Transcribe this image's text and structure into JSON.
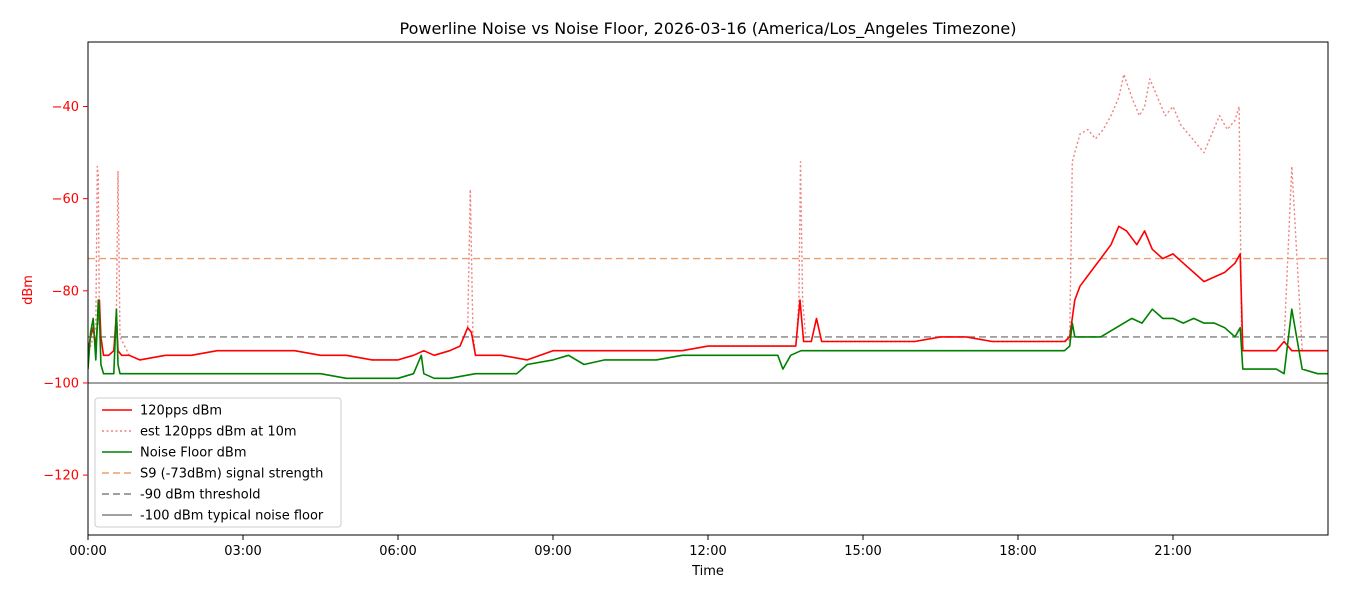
{
  "chart_data": {
    "type": "line",
    "title": "Powerline Noise vs Noise Floor, 2026-03-16 (America/Los_Angeles Timezone)",
    "xlabel": "Time",
    "ylabel": "dBm",
    "xlim": [
      0,
      24
    ],
    "ylim": [
      -133,
      -26
    ],
    "x_ticks": [
      0,
      3,
      6,
      9,
      12,
      15,
      18,
      21
    ],
    "x_tick_labels": [
      "00:00",
      "03:00",
      "06:00",
      "09:00",
      "12:00",
      "15:00",
      "18:00",
      "21:00"
    ],
    "y_ticks": [
      -120,
      -100,
      -80,
      -60,
      -40
    ],
    "y_tick_labels": [
      "−120",
      "−100",
      "−80",
      "−60",
      "−40"
    ],
    "grid": false,
    "legend_position": "lower-left",
    "series": [
      {
        "name": "120pps dBm",
        "color": "#ff0000",
        "style": "solid",
        "x": [
          0.0,
          0.05,
          0.1,
          0.15,
          0.2,
          0.22,
          0.25,
          0.3,
          0.4,
          0.5,
          0.55,
          0.58,
          0.65,
          0.8,
          1.0,
          1.5,
          2.0,
          2.5,
          3.0,
          3.5,
          4.0,
          4.5,
          5.0,
          5.5,
          6.0,
          6.3,
          6.5,
          6.7,
          7.0,
          7.2,
          7.35,
          7.42,
          7.5,
          7.7,
          8.0,
          8.5,
          9.0,
          9.5,
          10.0,
          10.5,
          11.0,
          11.5,
          12.0,
          12.5,
          13.0,
          13.5,
          13.7,
          13.78,
          13.85,
          14.0,
          14.1,
          14.2,
          14.5,
          15.0,
          15.5,
          16.0,
          16.5,
          17.0,
          17.5,
          18.0,
          18.5,
          18.9,
          19.0,
          19.1,
          19.2,
          19.4,
          19.6,
          19.8,
          19.95,
          20.1,
          20.3,
          20.45,
          20.6,
          20.8,
          21.0,
          21.2,
          21.4,
          21.6,
          21.8,
          22.0,
          22.2,
          22.3,
          22.35,
          22.5,
          22.8,
          23.0,
          23.15,
          23.3,
          23.5,
          23.8,
          24.0
        ],
        "y": [
          -93,
          -90,
          -88,
          -92,
          -85,
          -82,
          -90,
          -94,
          -94,
          -93,
          -85,
          -93,
          -94,
          -94,
          -95,
          -94,
          -94,
          -93,
          -93,
          -93,
          -93,
          -94,
          -94,
          -95,
          -95,
          -94,
          -93,
          -94,
          -93,
          -92,
          -88,
          -89,
          -94,
          -94,
          -94,
          -95,
          -93,
          -93,
          -93,
          -93,
          -93,
          -93,
          -92,
          -92,
          -92,
          -92,
          -92,
          -82,
          -91,
          -91,
          -86,
          -91,
          -91,
          -91,
          -91,
          -91,
          -90,
          -90,
          -91,
          -91,
          -91,
          -91,
          -90,
          -82,
          -79,
          -76,
          -73,
          -70,
          -66,
          -67,
          -70,
          -67,
          -71,
          -73,
          -72,
          -74,
          -76,
          -78,
          -77,
          -76,
          -74,
          -72,
          -93,
          -93,
          -93,
          -93,
          -91,
          -93,
          -93,
          -93,
          -93
        ]
      },
      {
        "name": "est 120pps dBm at 10m",
        "color": "#f08080",
        "style": "dotted",
        "x": [
          0.0,
          0.05,
          0.1,
          0.15,
          0.18,
          0.2,
          0.22,
          0.25,
          0.3,
          0.4,
          0.5,
          0.55,
          0.58,
          0.62,
          0.8,
          1.0,
          1.5,
          2.0,
          2.5,
          3.0,
          3.5,
          4.0,
          4.5,
          5.0,
          5.5,
          6.0,
          6.3,
          6.5,
          6.7,
          7.0,
          7.2,
          7.35,
          7.4,
          7.45,
          7.5,
          7.7,
          8.0,
          8.5,
          9.0,
          9.5,
          10.0,
          10.5,
          11.0,
          11.5,
          12.0,
          12.5,
          13.0,
          13.5,
          13.7,
          13.76,
          13.79,
          13.83,
          13.9,
          14.0,
          14.1,
          14.2,
          14.5,
          15.0,
          15.5,
          16.0,
          16.5,
          17.0,
          17.5,
          18.0,
          18.5,
          18.98,
          19.0,
          19.05,
          19.1,
          19.2,
          19.35,
          19.5,
          19.65,
          19.8,
          19.95,
          20.05,
          20.2,
          20.35,
          20.45,
          20.55,
          20.7,
          20.85,
          21.0,
          21.15,
          21.3,
          21.45,
          21.6,
          21.75,
          21.9,
          22.05,
          22.2,
          22.28,
          22.33,
          22.4,
          22.6,
          22.8,
          23.0,
          23.15,
          23.3,
          23.5,
          23.8,
          24.0
        ],
        "y": [
          -93,
          -92,
          -90,
          -88,
          -53,
          -55,
          -88,
          -90,
          -94,
          -94,
          -93,
          -85,
          -54,
          -90,
          -94,
          -95,
          -94,
          -94,
          -93,
          -93,
          -93,
          -93,
          -94,
          -94,
          -95,
          -95,
          -94,
          -93,
          -94,
          -93,
          -92,
          -88,
          -58,
          -89,
          -94,
          -94,
          -94,
          -95,
          -93,
          -93,
          -93,
          -93,
          -93,
          -93,
          -92,
          -92,
          -92,
          -92,
          -92,
          -82,
          -52,
          -82,
          -91,
          -91,
          -86,
          -91,
          -91,
          -91,
          -91,
          -91,
          -90,
          -90,
          -91,
          -91,
          -91,
          -91,
          -90,
          -52,
          -50,
          -46,
          -45,
          -47,
          -45,
          -42,
          -38,
          -33,
          -38,
          -42,
          -40,
          -34,
          -38,
          -42,
          -40,
          -44,
          -46,
          -48,
          -50,
          -46,
          -42,
          -45,
          -43,
          -40,
          -92,
          -93,
          -93,
          -93,
          -93,
          -91,
          -53,
          -93,
          -93,
          -93
        ]
      },
      {
        "name": "Noise Floor dBm",
        "color": "#008000",
        "style": "solid",
        "x": [
          0.0,
          0.05,
          0.1,
          0.15,
          0.2,
          0.22,
          0.25,
          0.3,
          0.4,
          0.5,
          0.55,
          0.58,
          0.62,
          0.8,
          1.0,
          1.5,
          2.0,
          2.5,
          3.0,
          3.5,
          4.0,
          4.5,
          5.0,
          5.5,
          6.0,
          6.3,
          6.45,
          6.5,
          6.7,
          7.0,
          7.5,
          8.0,
          8.3,
          8.5,
          9.0,
          9.3,
          9.6,
          10.0,
          10.5,
          11.0,
          11.5,
          12.0,
          12.5,
          13.0,
          13.35,
          13.45,
          13.6,
          13.8,
          14.0,
          14.2,
          14.5,
          15.0,
          15.5,
          16.0,
          16.5,
          17.0,
          17.5,
          18.0,
          18.5,
          18.9,
          19.0,
          19.05,
          19.1,
          19.3,
          19.6,
          19.9,
          20.2,
          20.4,
          20.6,
          20.8,
          21.0,
          21.2,
          21.4,
          21.6,
          21.8,
          22.0,
          22.2,
          22.3,
          22.35,
          22.5,
          22.8,
          23.0,
          23.15,
          23.3,
          23.5,
          23.8,
          24.0
        ],
        "y": [
          -97,
          -89,
          -86,
          -95,
          -82,
          -85,
          -96,
          -98,
          -98,
          -98,
          -84,
          -96,
          -98,
          -98,
          -98,
          -98,
          -98,
          -98,
          -98,
          -98,
          -98,
          -98,
          -99,
          -99,
          -99,
          -98,
          -94,
          -98,
          -99,
          -99,
          -98,
          -98,
          -98,
          -96,
          -95,
          -94,
          -96,
          -95,
          -95,
          -95,
          -94,
          -94,
          -94,
          -94,
          -94,
          -97,
          -94,
          -93,
          -93,
          -93,
          -93,
          -93,
          -93,
          -93,
          -93,
          -93,
          -93,
          -93,
          -93,
          -93,
          -92,
          -87,
          -90,
          -90,
          -90,
          -88,
          -86,
          -87,
          -84,
          -86,
          -86,
          -87,
          -86,
          -87,
          -87,
          -88,
          -90,
          -88,
          -97,
          -97,
          -97,
          -97,
          -98,
          -84,
          -97,
          -98,
          -98
        ]
      },
      {
        "name": "S9 (-73dBm) signal strength",
        "color": "#e8a070",
        "style": "dashed",
        "x": [
          0,
          24
        ],
        "y": [
          -73,
          -73
        ]
      },
      {
        "name": "-90 dBm threshold",
        "color": "#808080",
        "style": "dashed",
        "x": [
          0,
          24
        ],
        "y": [
          -90,
          -90
        ]
      },
      {
        "name": "-100 dBm typical noise floor",
        "color": "#808080",
        "style": "solid",
        "x": [
          0,
          24
        ],
        "y": [
          -100,
          -100
        ]
      }
    ]
  }
}
